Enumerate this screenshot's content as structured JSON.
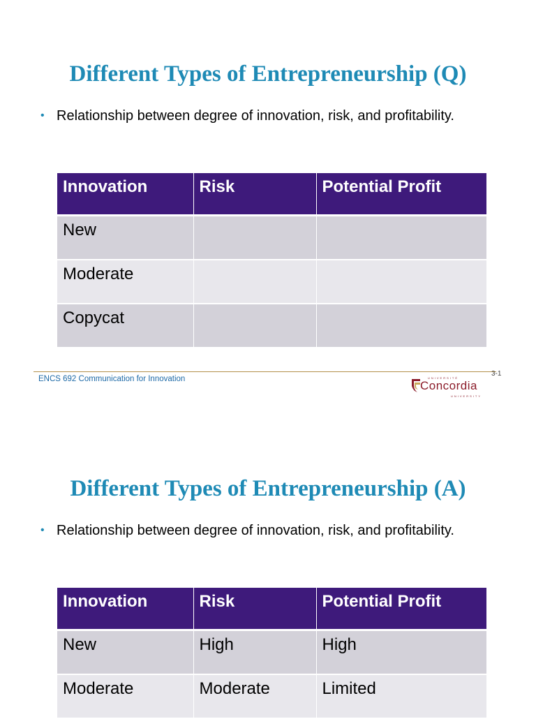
{
  "slide1": {
    "title": "Different Types of Entrepreneurship (Q)",
    "bullet": "Relationship between degree of innovation, risk, and profitability.",
    "table": {
      "headers": [
        "Innovation",
        "Risk",
        "Potential Profit"
      ],
      "rows": [
        [
          "New",
          "",
          ""
        ],
        [
          "Moderate",
          "",
          ""
        ],
        [
          "Copycat",
          "",
          ""
        ]
      ]
    },
    "footer": {
      "course": "ENCS 692 Communication for Innovation",
      "page": "3-1",
      "logo_text": "Concordia",
      "logo_small_top": "UNIVERSITÉ",
      "logo_small_bottom": "UNIVERSITY"
    }
  },
  "slide2": {
    "title": "Different Types of Entrepreneurship (A)",
    "bullet": "Relationship between degree of innovation, risk, and profitability.",
    "table": {
      "headers": [
        "Innovation",
        "Risk",
        "Potential Profit"
      ],
      "rows": [
        [
          "New",
          "High",
          "High"
        ],
        [
          "Moderate",
          "Moderate",
          "Limited"
        ]
      ]
    }
  },
  "colors": {
    "title": "#1e8ab5",
    "table_header": "#3e1a7b",
    "row_odd": "#d3d1d9",
    "row_even": "#e8e7ec",
    "footer_text": "#1e6aa7",
    "logo": "#8b1c2a"
  }
}
